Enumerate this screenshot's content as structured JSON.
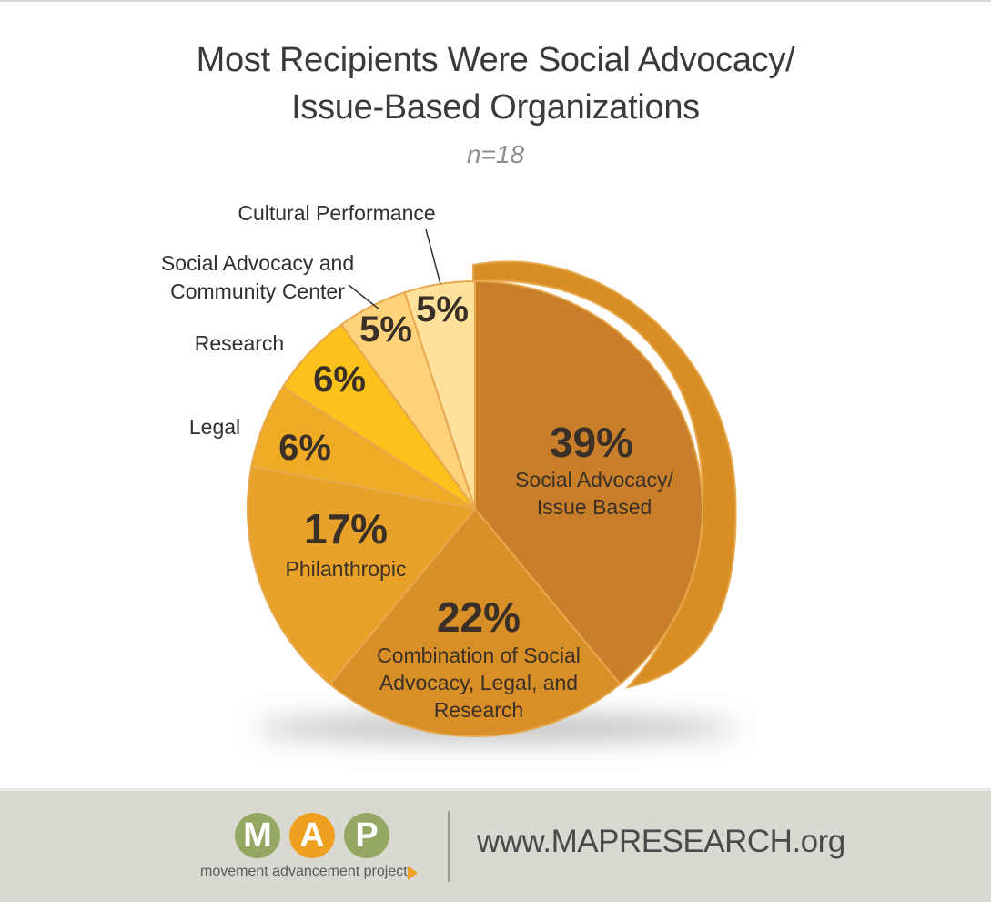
{
  "title_lines": [
    "Most Recipients Were Social Advocacy/",
    "Issue-Based Organizations"
  ],
  "subtitle": "n=18",
  "chart_data": {
    "type": "pie",
    "title": "Most Recipients Were Social Advocacy/ Issue-Based Organizations",
    "subtitle": "n=18",
    "unit": "%",
    "slices": [
      {
        "label": "Social Advocacy/ Issue Based",
        "value": 39,
        "display": "39%",
        "label_lines": [
          "Social Advocacy/",
          "Issue Based"
        ],
        "label_position": "inside",
        "color": "#c97f2a"
      },
      {
        "label": "Combination of Social Advocacy, Legal, and Research",
        "value": 22,
        "display": "22%",
        "label_lines": [
          "Combination of Social",
          "Advocacy, Legal, and",
          "Research"
        ],
        "label_position": "inside",
        "color": "#d98f28"
      },
      {
        "label": "Philanthropic",
        "value": 17,
        "display": "17%",
        "label_lines": [
          "Philanthropic"
        ],
        "label_position": "inside",
        "color": "#e8a229"
      },
      {
        "label": "Legal",
        "value": 6,
        "display": "6%",
        "label_lines": [
          "Legal"
        ],
        "label_position": "outside",
        "color": "#f0ab26"
      },
      {
        "label": "Research",
        "value": 6,
        "display": "6%",
        "label_lines": [
          "Research"
        ],
        "label_position": "outside",
        "color": "#fbc21c"
      },
      {
        "label": "Social Advocacy and Community Center",
        "value": 5,
        "display": "5%",
        "label_lines": [
          "Social Advocacy and",
          "Community Center"
        ],
        "label_position": "outside",
        "color": "#fdd27a"
      },
      {
        "label": "Cultural Performance",
        "value": 5,
        "display": "5%",
        "label_lines": [
          "Cultural Performance"
        ],
        "label_position": "outside",
        "color": "#fee19a"
      }
    ],
    "side_color": "#d88e25",
    "edge_color": "#e7a84e",
    "shadow_color": "#bbbbbb"
  },
  "footer": {
    "logo_letters": [
      "M",
      "A",
      "P"
    ],
    "logo_colors": [
      "#95a863",
      "#f0a020",
      "#95a863"
    ],
    "logo_tagline": "movement advancement project",
    "url": "www.MAPRESEARCH.org"
  }
}
